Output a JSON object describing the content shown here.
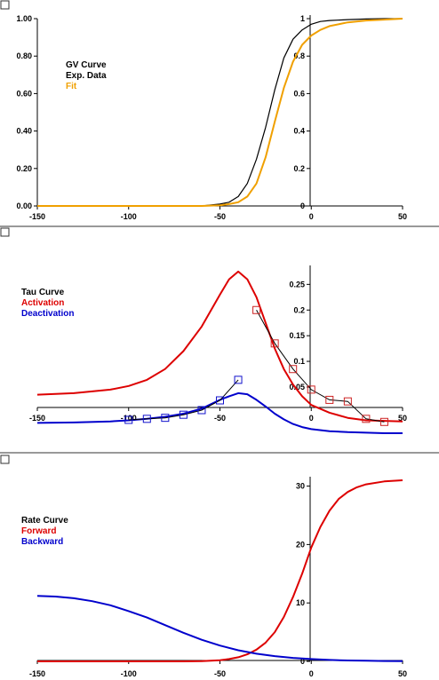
{
  "colors": {
    "black": "#000000",
    "orange": "#F0A000",
    "red": "#DD0000",
    "blue": "#0000CC",
    "marker_red": "#CC2222",
    "marker_blue": "#1111CC"
  },
  "chart_data": [
    {
      "type": "line",
      "title": "",
      "legend": [
        "GV Curve",
        "Exp. Data",
        "Fit"
      ],
      "legend_placement": "top-left",
      "xlim": [
        -150,
        50
      ],
      "ylim": [
        0,
        1
      ],
      "x_ticks": [
        "-150",
        "-100",
        "-50",
        "0",
        "50"
      ],
      "y_ticks_left": [
        "0.00",
        "0.20",
        "0.40",
        "0.60",
        "0.80",
        "1.00"
      ],
      "y_ticks_right": [
        "0",
        "0.2",
        "0.4",
        "0.6",
        "0.8",
        "1"
      ],
      "series": [
        {
          "name": "Exp. Data",
          "color": "black",
          "x": [
            -150,
            -60,
            -50,
            -45,
            -40,
            -35,
            -30,
            -25,
            -20,
            -15,
            -10,
            -5,
            0,
            5,
            10,
            20,
            30,
            40,
            50
          ],
          "y": [
            0,
            0,
            0.01,
            0.02,
            0.05,
            0.12,
            0.25,
            0.42,
            0.62,
            0.79,
            0.89,
            0.94,
            0.97,
            0.985,
            0.99,
            0.995,
            0.998,
            1.0,
            1.0
          ]
        },
        {
          "name": "Fit",
          "color": "orange",
          "x": [
            -150,
            -60,
            -50,
            -45,
            -40,
            -35,
            -30,
            -25,
            -20,
            -15,
            -10,
            -5,
            0,
            5,
            10,
            20,
            30,
            40,
            50
          ],
          "y": [
            0,
            0,
            0.004,
            0.01,
            0.02,
            0.05,
            0.12,
            0.26,
            0.45,
            0.63,
            0.77,
            0.86,
            0.91,
            0.94,
            0.96,
            0.98,
            0.99,
            0.995,
            1.0
          ]
        }
      ]
    },
    {
      "type": "line",
      "title": "",
      "legend": [
        "Tau Curve",
        "Activation",
        "Deactivation"
      ],
      "legend_placement": "left",
      "xlim": [
        -150,
        50
      ],
      "ylim": [
        -0.04,
        0.28
      ],
      "x_ticks": [
        "-150",
        "-100",
        "-50",
        "0",
        "50"
      ],
      "y_ticks_right": [
        "0.05",
        "0.1",
        "0.15",
        "0.2",
        "0.25"
      ],
      "series": [
        {
          "name": "Activation",
          "color": "red",
          "x": [
            -150,
            -130,
            -110,
            -100,
            -90,
            -80,
            -70,
            -60,
            -50,
            -45,
            -40,
            -35,
            -30,
            -25,
            -20,
            -15,
            -10,
            -5,
            0,
            10,
            20,
            30,
            40,
            50
          ],
          "y": [
            0.035,
            0.038,
            0.045,
            0.052,
            0.064,
            0.085,
            0.12,
            0.168,
            0.23,
            0.26,
            0.275,
            0.26,
            0.225,
            0.175,
            0.125,
            0.085,
            0.055,
            0.032,
            0.015,
            0,
            -0.01,
            -0.015,
            -0.016,
            -0.017
          ]
        },
        {
          "name": "Deactivation",
          "color": "blue",
          "x": [
            -150,
            -130,
            -110,
            -100,
            -90,
            -80,
            -70,
            -60,
            -50,
            -45,
            -40,
            -35,
            -30,
            -25,
            -20,
            -15,
            -10,
            -5,
            0,
            10,
            20,
            30,
            40,
            50
          ],
          "y": [
            -0.02,
            -0.019,
            -0.017,
            -0.015,
            -0.012,
            -0.008,
            -0.002,
            0.008,
            0.025,
            0.032,
            0.038,
            0.036,
            0.025,
            0.012,
            -0.002,
            -0.013,
            -0.022,
            -0.028,
            -0.032,
            -0.036,
            -0.038,
            -0.039,
            -0.04,
            -0.04
          ]
        },
        {
          "name": "Activation data",
          "color": "marker_red",
          "markers": true,
          "x": [
            -30,
            -20,
            -10,
            0,
            10,
            20,
            30,
            40
          ],
          "y": [
            0.2,
            0.135,
            0.085,
            0.045,
            0.025,
            0.022,
            -0.012,
            -0.018
          ]
        },
        {
          "name": "Deactivation data",
          "color": "marker_blue",
          "markers": true,
          "x": [
            -100,
            -90,
            -80,
            -70,
            -60,
            -50,
            -40
          ],
          "y": [
            -0.014,
            -0.012,
            -0.01,
            -0.004,
            0.005,
            0.024,
            0.064
          ]
        }
      ]
    },
    {
      "type": "line",
      "title": "",
      "legend": [
        "Rate Curve",
        "Forward",
        "Backward"
      ],
      "legend_placement": "left",
      "xlim": [
        -150,
        50
      ],
      "ylim": [
        0,
        31
      ],
      "x_ticks": [
        "-150",
        "-100",
        "-50",
        "0",
        "50"
      ],
      "y_ticks_right": [
        "0",
        "10",
        "20",
        "30"
      ],
      "series": [
        {
          "name": "Forward",
          "color": "red",
          "x": [
            -150,
            -100,
            -70,
            -60,
            -50,
            -45,
            -40,
            -35,
            -30,
            -25,
            -20,
            -15,
            -10,
            -5,
            0,
            5,
            10,
            15,
            20,
            25,
            30,
            40,
            50
          ],
          "y": [
            0,
            0,
            0,
            0.05,
            0.2,
            0.4,
            0.7,
            1.2,
            2.0,
            3.2,
            5.0,
            7.6,
            11.0,
            15.0,
            19.5,
            23.0,
            25.8,
            27.8,
            29.0,
            29.8,
            30.3,
            30.8,
            31.0
          ]
        },
        {
          "name": "Backward",
          "color": "blue",
          "x": [
            -150,
            -140,
            -130,
            -120,
            -110,
            -100,
            -90,
            -80,
            -70,
            -60,
            -50,
            -40,
            -30,
            -20,
            -10,
            0,
            10,
            20,
            30,
            40,
            50
          ],
          "y": [
            11.2,
            11.1,
            10.8,
            10.3,
            9.6,
            8.6,
            7.5,
            6.2,
            4.9,
            3.7,
            2.7,
            1.9,
            1.3,
            0.9,
            0.6,
            0.4,
            0.25,
            0.15,
            0.1,
            0.06,
            0.04
          ]
        }
      ]
    }
  ]
}
